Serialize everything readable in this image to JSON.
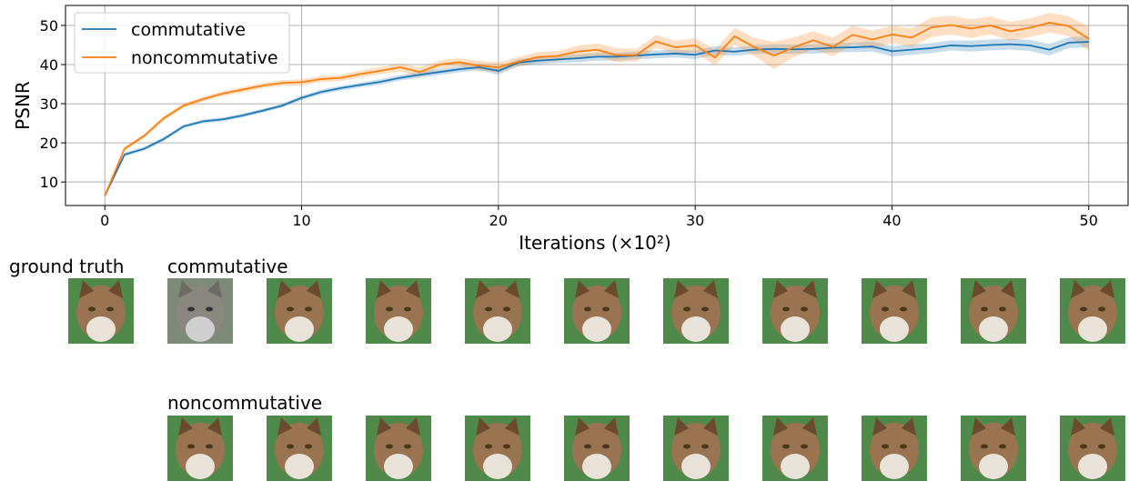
{
  "chart_data": {
    "type": "line",
    "x": [
      0,
      1,
      2,
      3,
      4,
      5,
      6,
      7,
      8,
      9,
      10,
      11,
      12,
      13,
      14,
      15,
      16,
      17,
      18,
      19,
      20,
      21,
      22,
      23,
      24,
      25,
      26,
      27,
      28,
      29,
      30,
      31,
      32,
      33,
      34,
      35,
      36,
      37,
      38,
      39,
      40,
      41,
      42,
      43,
      44,
      45,
      46,
      47,
      48,
      49,
      50
    ],
    "x_label": "Iterations (×10²)",
    "y_label": "PSNR",
    "xlim": [
      -2,
      52
    ],
    "ylim": [
      4,
      55.1
    ],
    "xticks": [
      0,
      10,
      20,
      30,
      40,
      50
    ],
    "yticks": [
      10,
      20,
      30,
      40,
      50
    ],
    "grid": true,
    "legend": "upper left",
    "series": [
      {
        "name": "commutative",
        "color": "#1f77b4",
        "values": [
          6.5,
          17,
          18.5,
          21,
          24.2,
          25.5,
          26,
          27,
          28.2,
          29.5,
          31.5,
          33,
          34,
          34.8,
          35.6,
          36.6,
          37.4,
          38.1,
          38.8,
          39.3,
          38.4,
          40.5,
          41,
          41.3,
          41.6,
          42,
          42,
          42.3,
          42.6,
          42.8,
          42.5,
          43.6,
          43.3,
          43.8,
          44,
          43.9,
          44,
          44.3,
          44.4,
          44.6,
          43.4,
          43.8,
          44.2,
          44.9,
          44.7,
          45,
          45.2,
          44.9,
          43.8,
          45.6,
          45.8
        ],
        "spread": [
          0.3,
          0.5,
          0.5,
          0.5,
          0.5,
          0.5,
          0.5,
          0.5,
          0.5,
          0.5,
          0.6,
          0.6,
          0.6,
          0.6,
          0.7,
          0.7,
          0.8,
          0.8,
          0.8,
          0.8,
          1,
          0.9,
          0.9,
          0.9,
          1,
          1,
          1,
          1,
          1,
          1,
          1.1,
          1.1,
          1.1,
          1.1,
          1.2,
          1.2,
          1.2,
          1.2,
          1.2,
          1.3,
          1.3,
          1.3,
          1.3,
          1.3,
          1.4,
          1.4,
          1.4,
          1.4,
          1.5,
          1.4,
          1.4
        ]
      },
      {
        "name": "noncommutative",
        "color": "#ff7f0e",
        "values": [
          6.5,
          18.5,
          21.8,
          26.3,
          29.5,
          31.2,
          32.6,
          33.6,
          34.6,
          35.3,
          35.5,
          36.3,
          36.6,
          37.6,
          38.4,
          39.3,
          38.1,
          40,
          40.6,
          39.7,
          39.3,
          40.7,
          41.9,
          42.2,
          43.3,
          43.8,
          42.4,
          42.4,
          45.9,
          44.4,
          44.9,
          41.8,
          47.2,
          44.5,
          42.3,
          44.4,
          46.2,
          44.5,
          47.6,
          46.4,
          47.7,
          46.9,
          49.5,
          50.1,
          49.2,
          50,
          48.5,
          49.4,
          50.7,
          49.8,
          46.6
        ],
        "spread": [
          0.3,
          0.5,
          0.5,
          0.6,
          0.6,
          0.6,
          0.6,
          0.7,
          0.7,
          0.7,
          0.8,
          0.8,
          0.8,
          0.9,
          0.9,
          1,
          1.2,
          1,
          1,
          1.2,
          1.3,
          1.2,
          1.3,
          1.3,
          1.5,
          1.6,
          1.8,
          1.6,
          1.6,
          1.7,
          1.8,
          2,
          2.2,
          2.3,
          3.5,
          2.5,
          2.3,
          2.4,
          2.3,
          2.3,
          2.2,
          2.4,
          2.5,
          2.4,
          2.4,
          2.3,
          2.4,
          2.4,
          2.5,
          2.5,
          3
        ]
      }
    ]
  },
  "image_panel": {
    "ground_truth_label": "ground truth",
    "rows": [
      {
        "label": "commutative"
      },
      {
        "label": "noncommutative"
      }
    ]
  }
}
